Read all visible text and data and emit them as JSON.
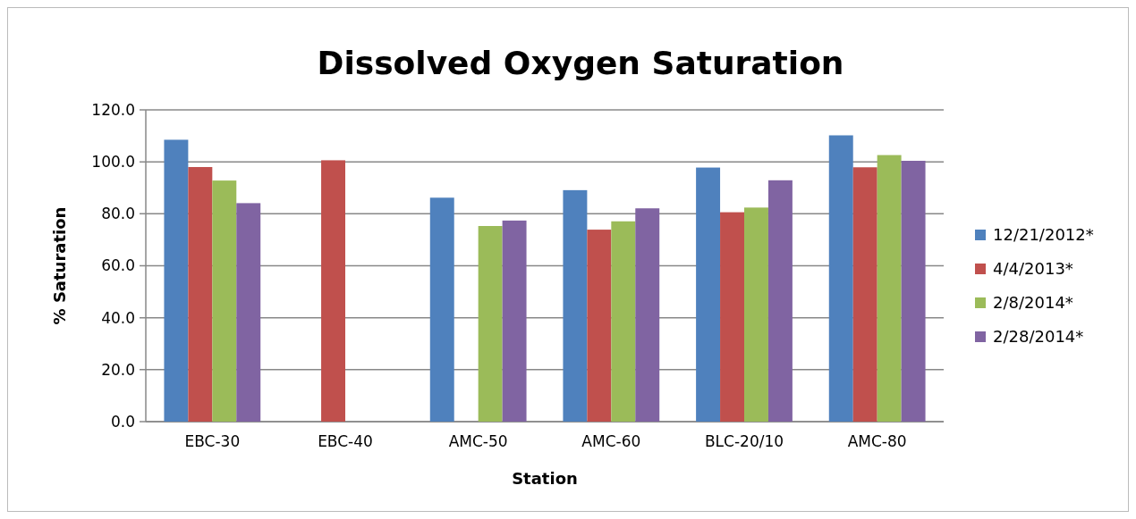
{
  "chart_data": {
    "type": "bar",
    "title": "Dissolved Oxygen Saturation",
    "xlabel": "Station",
    "ylabel": "% Saturation",
    "categories": [
      "EBC-30",
      "EBC-40",
      "AMC-50",
      "AMC-60",
      "BLC-20/10",
      "AMC-80"
    ],
    "series": [
      {
        "name": "12/21/2012*",
        "color": "#4f81bd",
        "values": [
          108.5,
          null,
          86.2,
          89.1,
          97.8,
          110.2
        ]
      },
      {
        "name": "4/4/2013*",
        "color": "#c0504d",
        "values": [
          98.0,
          100.6,
          null,
          73.9,
          80.6,
          97.9
        ]
      },
      {
        "name": "2/8/2014*",
        "color": "#9bbb59",
        "values": [
          92.8,
          null,
          75.3,
          77.1,
          82.4,
          102.6
        ]
      },
      {
        "name": "2/28/2014*",
        "color": "#8064a2",
        "values": [
          84.1,
          null,
          77.4,
          82.1,
          92.9,
          100.4
        ]
      }
    ],
    "ylim": [
      0,
      120
    ],
    "yticks": [
      {
        "value": 0,
        "label": "0.0"
      },
      {
        "value": 20,
        "label": "20.0"
      },
      {
        "value": 40,
        "label": "40.0"
      },
      {
        "value": 60,
        "label": "60.0"
      },
      {
        "value": 80,
        "label": "80.0"
      },
      {
        "value": 100,
        "label": "100.0"
      },
      {
        "value": 120,
        "label": "120.0"
      }
    ],
    "grid": "y",
    "legend": "right"
  }
}
